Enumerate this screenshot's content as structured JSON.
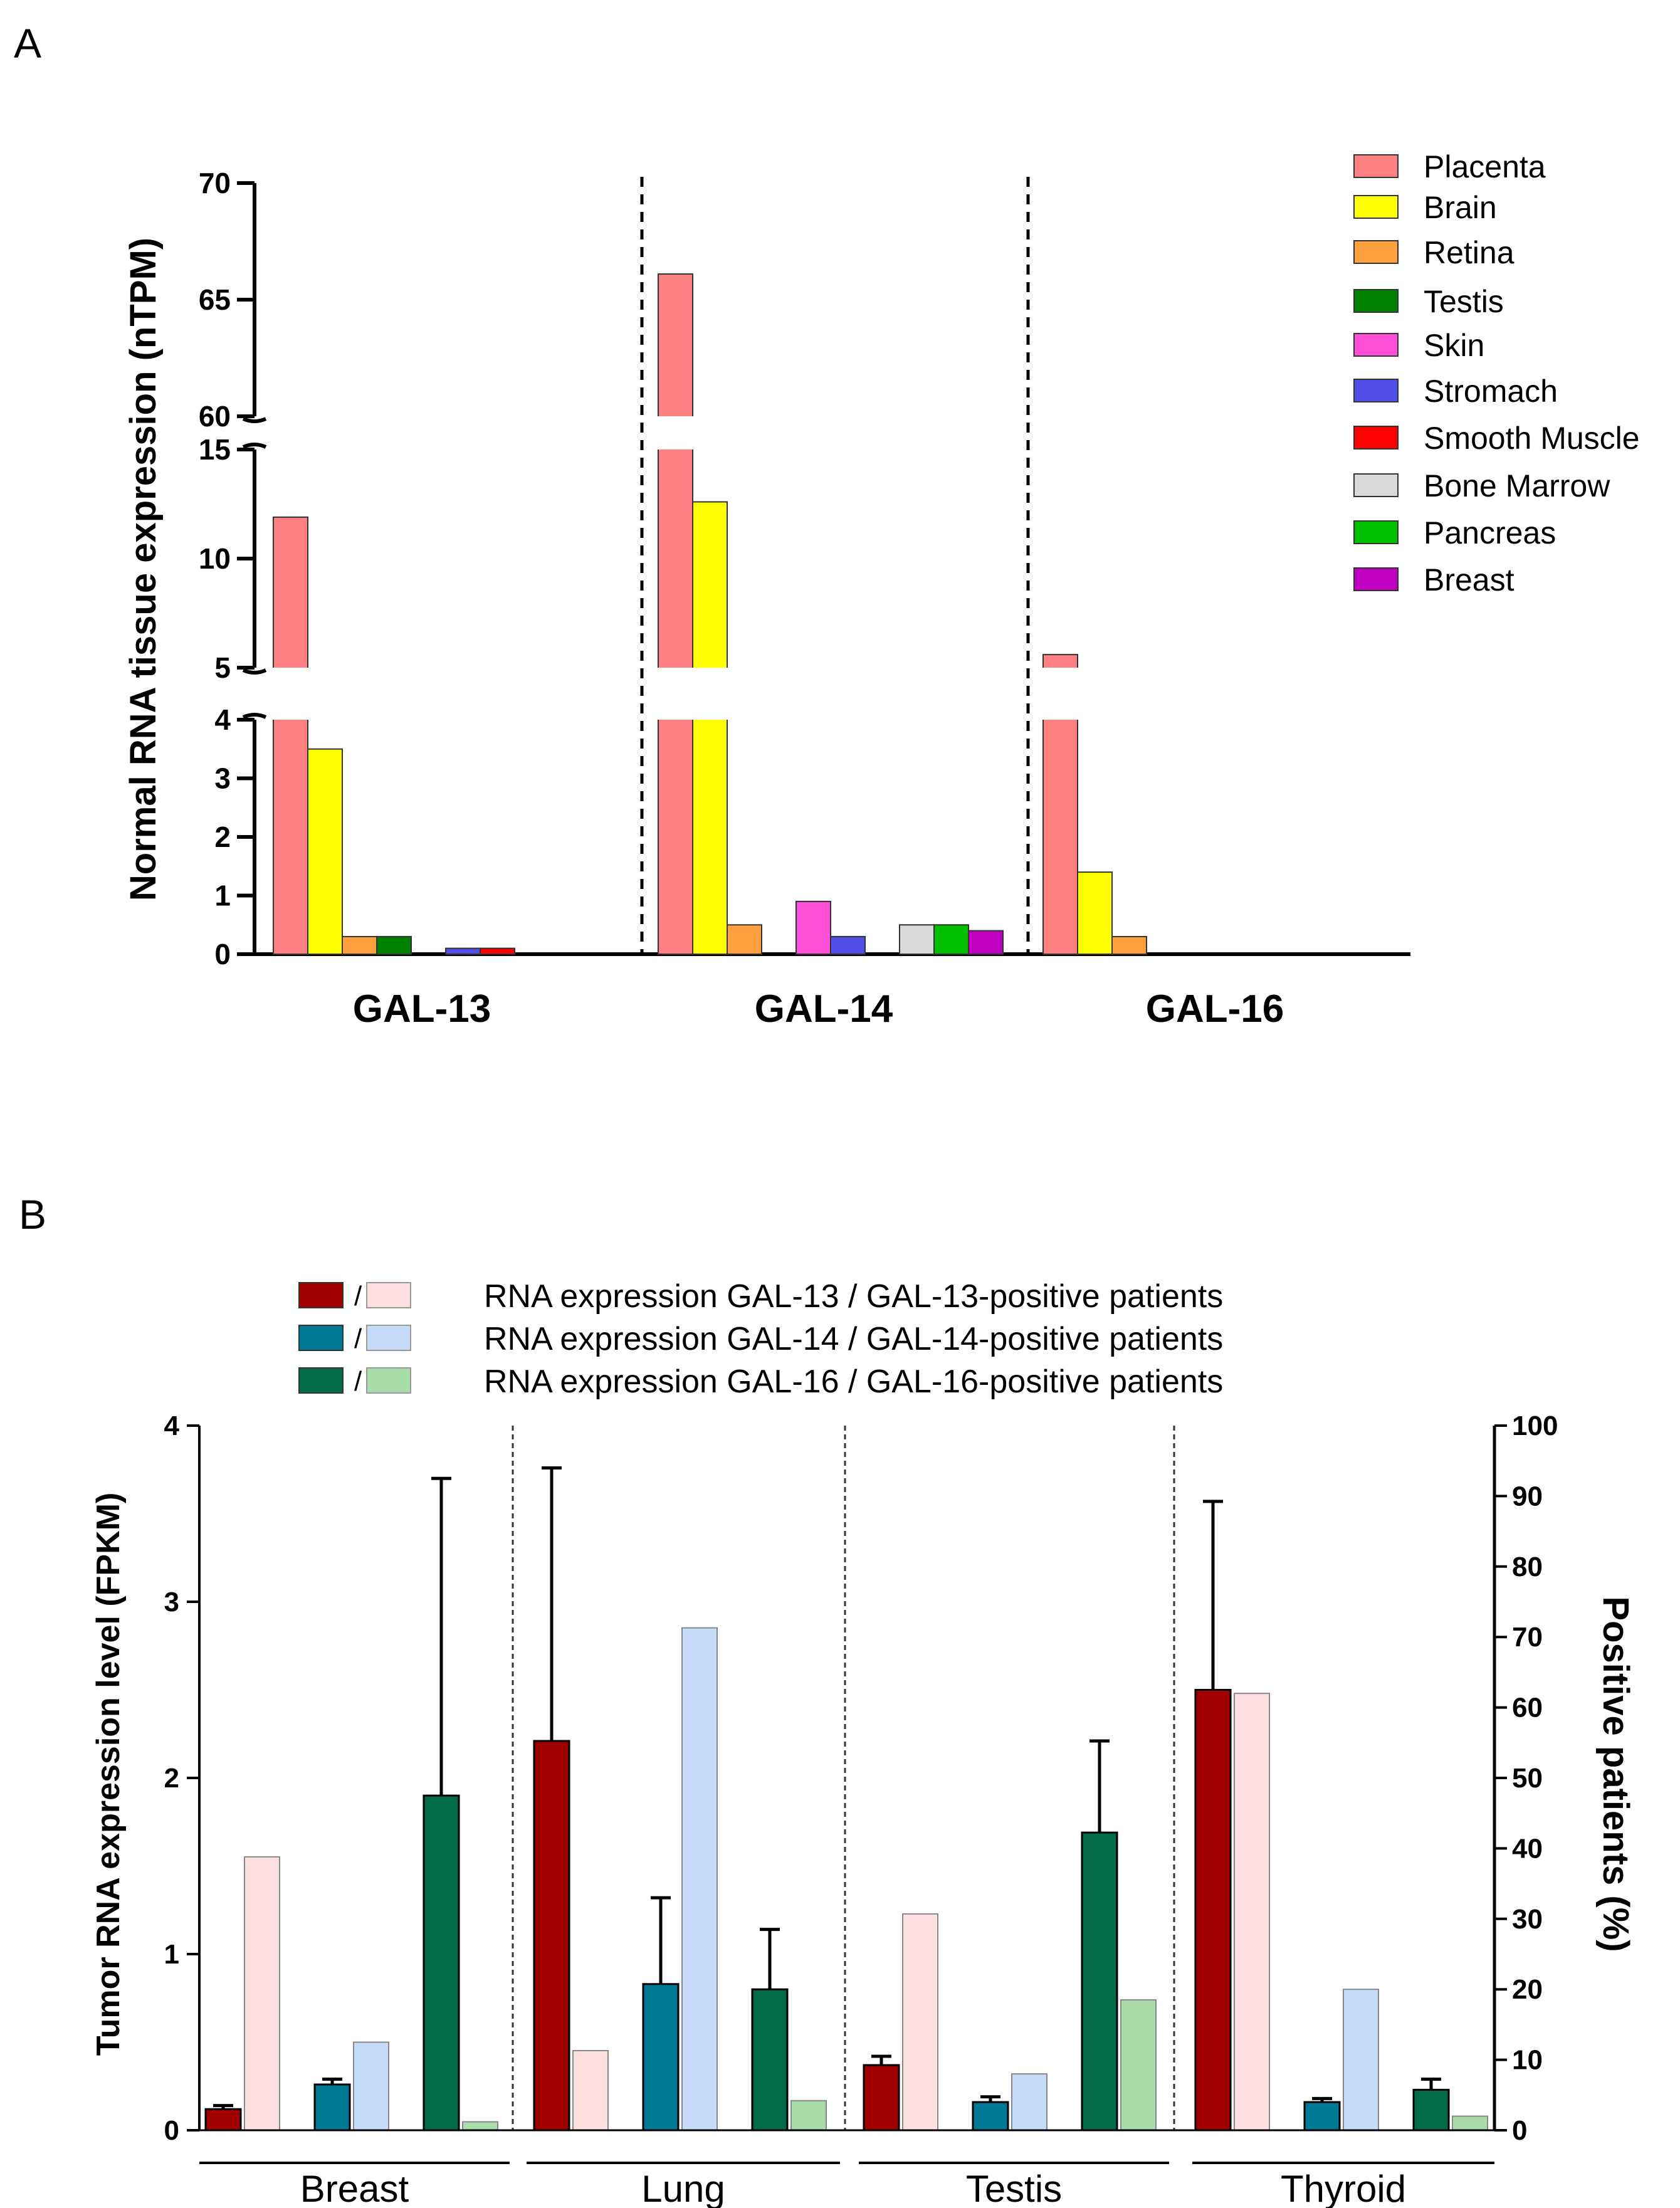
{
  "panels": {
    "a_label": "A",
    "b_label": "B"
  },
  "chart_data": [
    {
      "type": "bar",
      "title": "",
      "ylabel": "Normal RNA tissue expression (nTPM)",
      "xlabel": "",
      "y_axis_breaks": [
        [
          4,
          5
        ],
        [
          15,
          60
        ]
      ],
      "y_segments": [
        {
          "range": [
            0,
            4
          ],
          "ticks": [
            "0",
            "1",
            "2",
            "3",
            "4"
          ]
        },
        {
          "range": [
            5,
            15
          ],
          "ticks": [
            "5",
            "10",
            "15"
          ]
        },
        {
          "range": [
            60,
            70
          ],
          "ticks": [
            "60",
            "65",
            "70"
          ]
        }
      ],
      "groups": [
        "GAL-13",
        "GAL-14",
        "GAL-16"
      ],
      "series": [
        {
          "name": "Placenta",
          "color": "#FF8080",
          "values": [
            11.9,
            66.1,
            5.6
          ]
        },
        {
          "name": "Brain",
          "color": "#FFFF00",
          "values": [
            3.5,
            12.6,
            1.4
          ]
        },
        {
          "name": "Retina",
          "color": "#FF9F40",
          "values": [
            0.3,
            0.5,
            0.3
          ]
        },
        {
          "name": "Testis",
          "color": "#008000",
          "values": [
            0.3,
            0,
            0
          ]
        },
        {
          "name": "Skin",
          "color": "#FF4FD8",
          "values": [
            0,
            0.9,
            0
          ]
        },
        {
          "name": "Stromach",
          "color": "#4F4FE8",
          "values": [
            0.1,
            0.3,
            0
          ]
        },
        {
          "name": "Smooth Muscle",
          "color": "#FF0000",
          "values": [
            0.1,
            0,
            0
          ]
        },
        {
          "name": "Bone Marrow",
          "color": "#D9D9D9",
          "values": [
            0,
            0.5,
            0
          ]
        },
        {
          "name": "Pancreas",
          "color": "#00C000",
          "values": [
            0,
            0.5,
            0
          ]
        },
        {
          "name": "Breast",
          "color": "#C000C0",
          "values": [
            0,
            0.4,
            0
          ]
        }
      ],
      "legend": "right"
    },
    {
      "type": "bar",
      "title": "",
      "ylabel": "Tumor RNA expression level (FPKM)",
      "y2label": "Positive patients (%)",
      "ylim": [
        0,
        4
      ],
      "y2lim": [
        0,
        100
      ],
      "yticks": [
        "0",
        "1",
        "2",
        "3",
        "4"
      ],
      "y2ticks": [
        "0",
        "10",
        "20",
        "30",
        "40",
        "50",
        "60",
        "70",
        "80",
        "90",
        "100"
      ],
      "categories": [
        "Breast",
        "Lung",
        "Testis",
        "Thyroid"
      ],
      "legend_entries": [
        {
          "sep": "/",
          "text": "RNA expression GAL-13 / GAL-13-positive patients",
          "expr_color": "#A00000",
          "pos_color": "#FFE0E0"
        },
        {
          "sep": "/",
          "text": "RNA expression GAL-14 / GAL-14-positive patients",
          "expr_color": "#007A94",
          "pos_color": "#C6DBF7"
        },
        {
          "sep": "/",
          "text": "RNA expression GAL-16 / GAL-16-positive patients",
          "expr_color": "#036A4A",
          "pos_color": "#A8DDAA"
        }
      ],
      "series": [
        {
          "name": "GAL-13 expression (FPKM)",
          "axis": "left",
          "color": "#A00000",
          "values": [
            0.12,
            2.21,
            0.37,
            2.5
          ],
          "errors": [
            0.02,
            1.55,
            0.05,
            1.07
          ]
        },
        {
          "name": "GAL-13-positive patients (%)",
          "axis": "right",
          "color": "#FFE0E0",
          "values": [
            38.8,
            11.3,
            30.7,
            62.0
          ]
        },
        {
          "name": "GAL-14 expression (FPKM)",
          "axis": "left",
          "color": "#007A94",
          "values": [
            0.26,
            0.83,
            0.16,
            0.16
          ],
          "errors": [
            0.03,
            0.49,
            0.03,
            0.02
          ]
        },
        {
          "name": "GAL-14-positive patients (%)",
          "axis": "right",
          "color": "#C6DBF7",
          "values": [
            12.5,
            71.3,
            8.0,
            20.0
          ]
        },
        {
          "name": "GAL-16 expression (FPKM)",
          "axis": "left",
          "color": "#036A4A",
          "values": [
            1.9,
            0.8,
            1.69,
            0.23
          ],
          "errors": [
            1.8,
            0.34,
            0.52,
            0.06
          ]
        },
        {
          "name": "GAL-16-positive patients (%)",
          "axis": "right",
          "color": "#A8DDAA",
          "values": [
            1.2,
            4.2,
            18.5,
            2.0
          ]
        }
      ]
    }
  ]
}
